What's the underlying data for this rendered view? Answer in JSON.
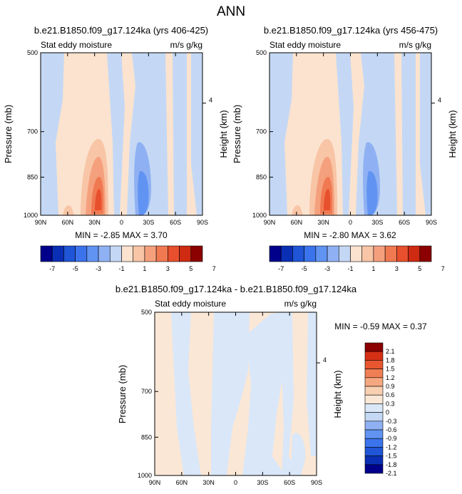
{
  "page": {
    "title": "ANN"
  },
  "palettes": {
    "top": [
      "#00008b",
      "#0a2fb4",
      "#1f55d6",
      "#3b73ec",
      "#6193f2",
      "#8fb1f3",
      "#c4d8f5",
      "#fbe3cf",
      "#f8c5a6",
      "#f5a07d",
      "#f07952",
      "#e84f2c",
      "#cf2a12",
      "#8b0000"
    ],
    "diff": [
      "#00008b",
      "#0a2fb4",
      "#1f55d6",
      "#3b73ec",
      "#6193f2",
      "#8fb1f3",
      "#c4d8f5",
      "#d9e7f8",
      "#fbe7d6",
      "#f8cfb1",
      "#f5a87f",
      "#f07e55",
      "#e8562f",
      "#d63014",
      "#8b0000"
    ]
  },
  "chart_data": [
    {
      "type": "heatmap",
      "title": "b.e21.B1850.f09_g17.124ka (yrs 406-425)",
      "left_label": "Stat eddy moisture",
      "right_label": "m/s g/kg",
      "ylabel": "Pressure (mb)",
      "ylabel_right": "Height (km)",
      "xticks": [
        "90N",
        "60N",
        "30N",
        "0",
        "30S",
        "60S",
        "90S"
      ],
      "yticks": [
        "500",
        "700",
        "850",
        "1000"
      ],
      "ytick_values": [
        500,
        700,
        850,
        1000
      ],
      "ylim": [
        500,
        1000
      ],
      "right_tick": "4",
      "stats": "MIN =  -2.85   MAX =   3.70",
      "colorbar_labels": [
        "-7",
        "-5",
        "-3",
        "-1",
        "1",
        "3",
        "5",
        "7"
      ],
      "feature_maxima": [
        {
          "lat": 25,
          "p": 880,
          "value": 3.7
        },
        {
          "lat": -28,
          "p": 870,
          "value": -2.85
        }
      ]
    },
    {
      "type": "heatmap",
      "title": "b.e21.B1850.f09_g17.124ka (yrs 456-475)",
      "left_label": "Stat eddy moisture",
      "right_label": "m/s g/kg",
      "ylabel": "Pressure (mb)",
      "ylabel_right": "Height (km)",
      "xticks": [
        "90N",
        "60N",
        "30N",
        "0",
        "30S",
        "60S",
        "90S"
      ],
      "yticks": [
        "500",
        "700",
        "850",
        "1000"
      ],
      "ytick_values": [
        500,
        700,
        850,
        1000
      ],
      "ylim": [
        500,
        1000
      ],
      "right_tick": "4",
      "stats": "MIN =  -2.80   MAX =   3.62",
      "colorbar_labels": [
        "-7",
        "-5",
        "-3",
        "-1",
        "1",
        "3",
        "5",
        "7"
      ],
      "feature_maxima": [
        {
          "lat": 25,
          "p": 880,
          "value": 3.62
        },
        {
          "lat": -28,
          "p": 870,
          "value": -2.8
        }
      ]
    },
    {
      "type": "heatmap",
      "title": "b.e21.B1850.f09_g17.124ka - b.e21.B1850.f09_g17.124ka",
      "left_label": "Stat eddy moisture",
      "right_label": "m/s g/kg",
      "ylabel": "Pressure (mb)",
      "ylabel_right": "Height (km)",
      "xticks": [
        "90N",
        "60N",
        "30N",
        "0",
        "30S",
        "60S",
        "90S"
      ],
      "yticks": [
        "500",
        "700",
        "850",
        "1000"
      ],
      "ytick_values": [
        500,
        700,
        850,
        1000
      ],
      "ylim": [
        500,
        1000
      ],
      "right_tick": "4",
      "stats": "MIN =  -0.59   MAX =   0.37",
      "colorbar_labels": [
        "2.1",
        "1.8",
        "1.5",
        "1.2",
        "0.9",
        "0.6",
        "0.3",
        "0",
        "-0.3",
        "-0.6",
        "-0.9",
        "-1.2",
        "-1.5",
        "-1.8",
        "-2.1"
      ]
    }
  ]
}
